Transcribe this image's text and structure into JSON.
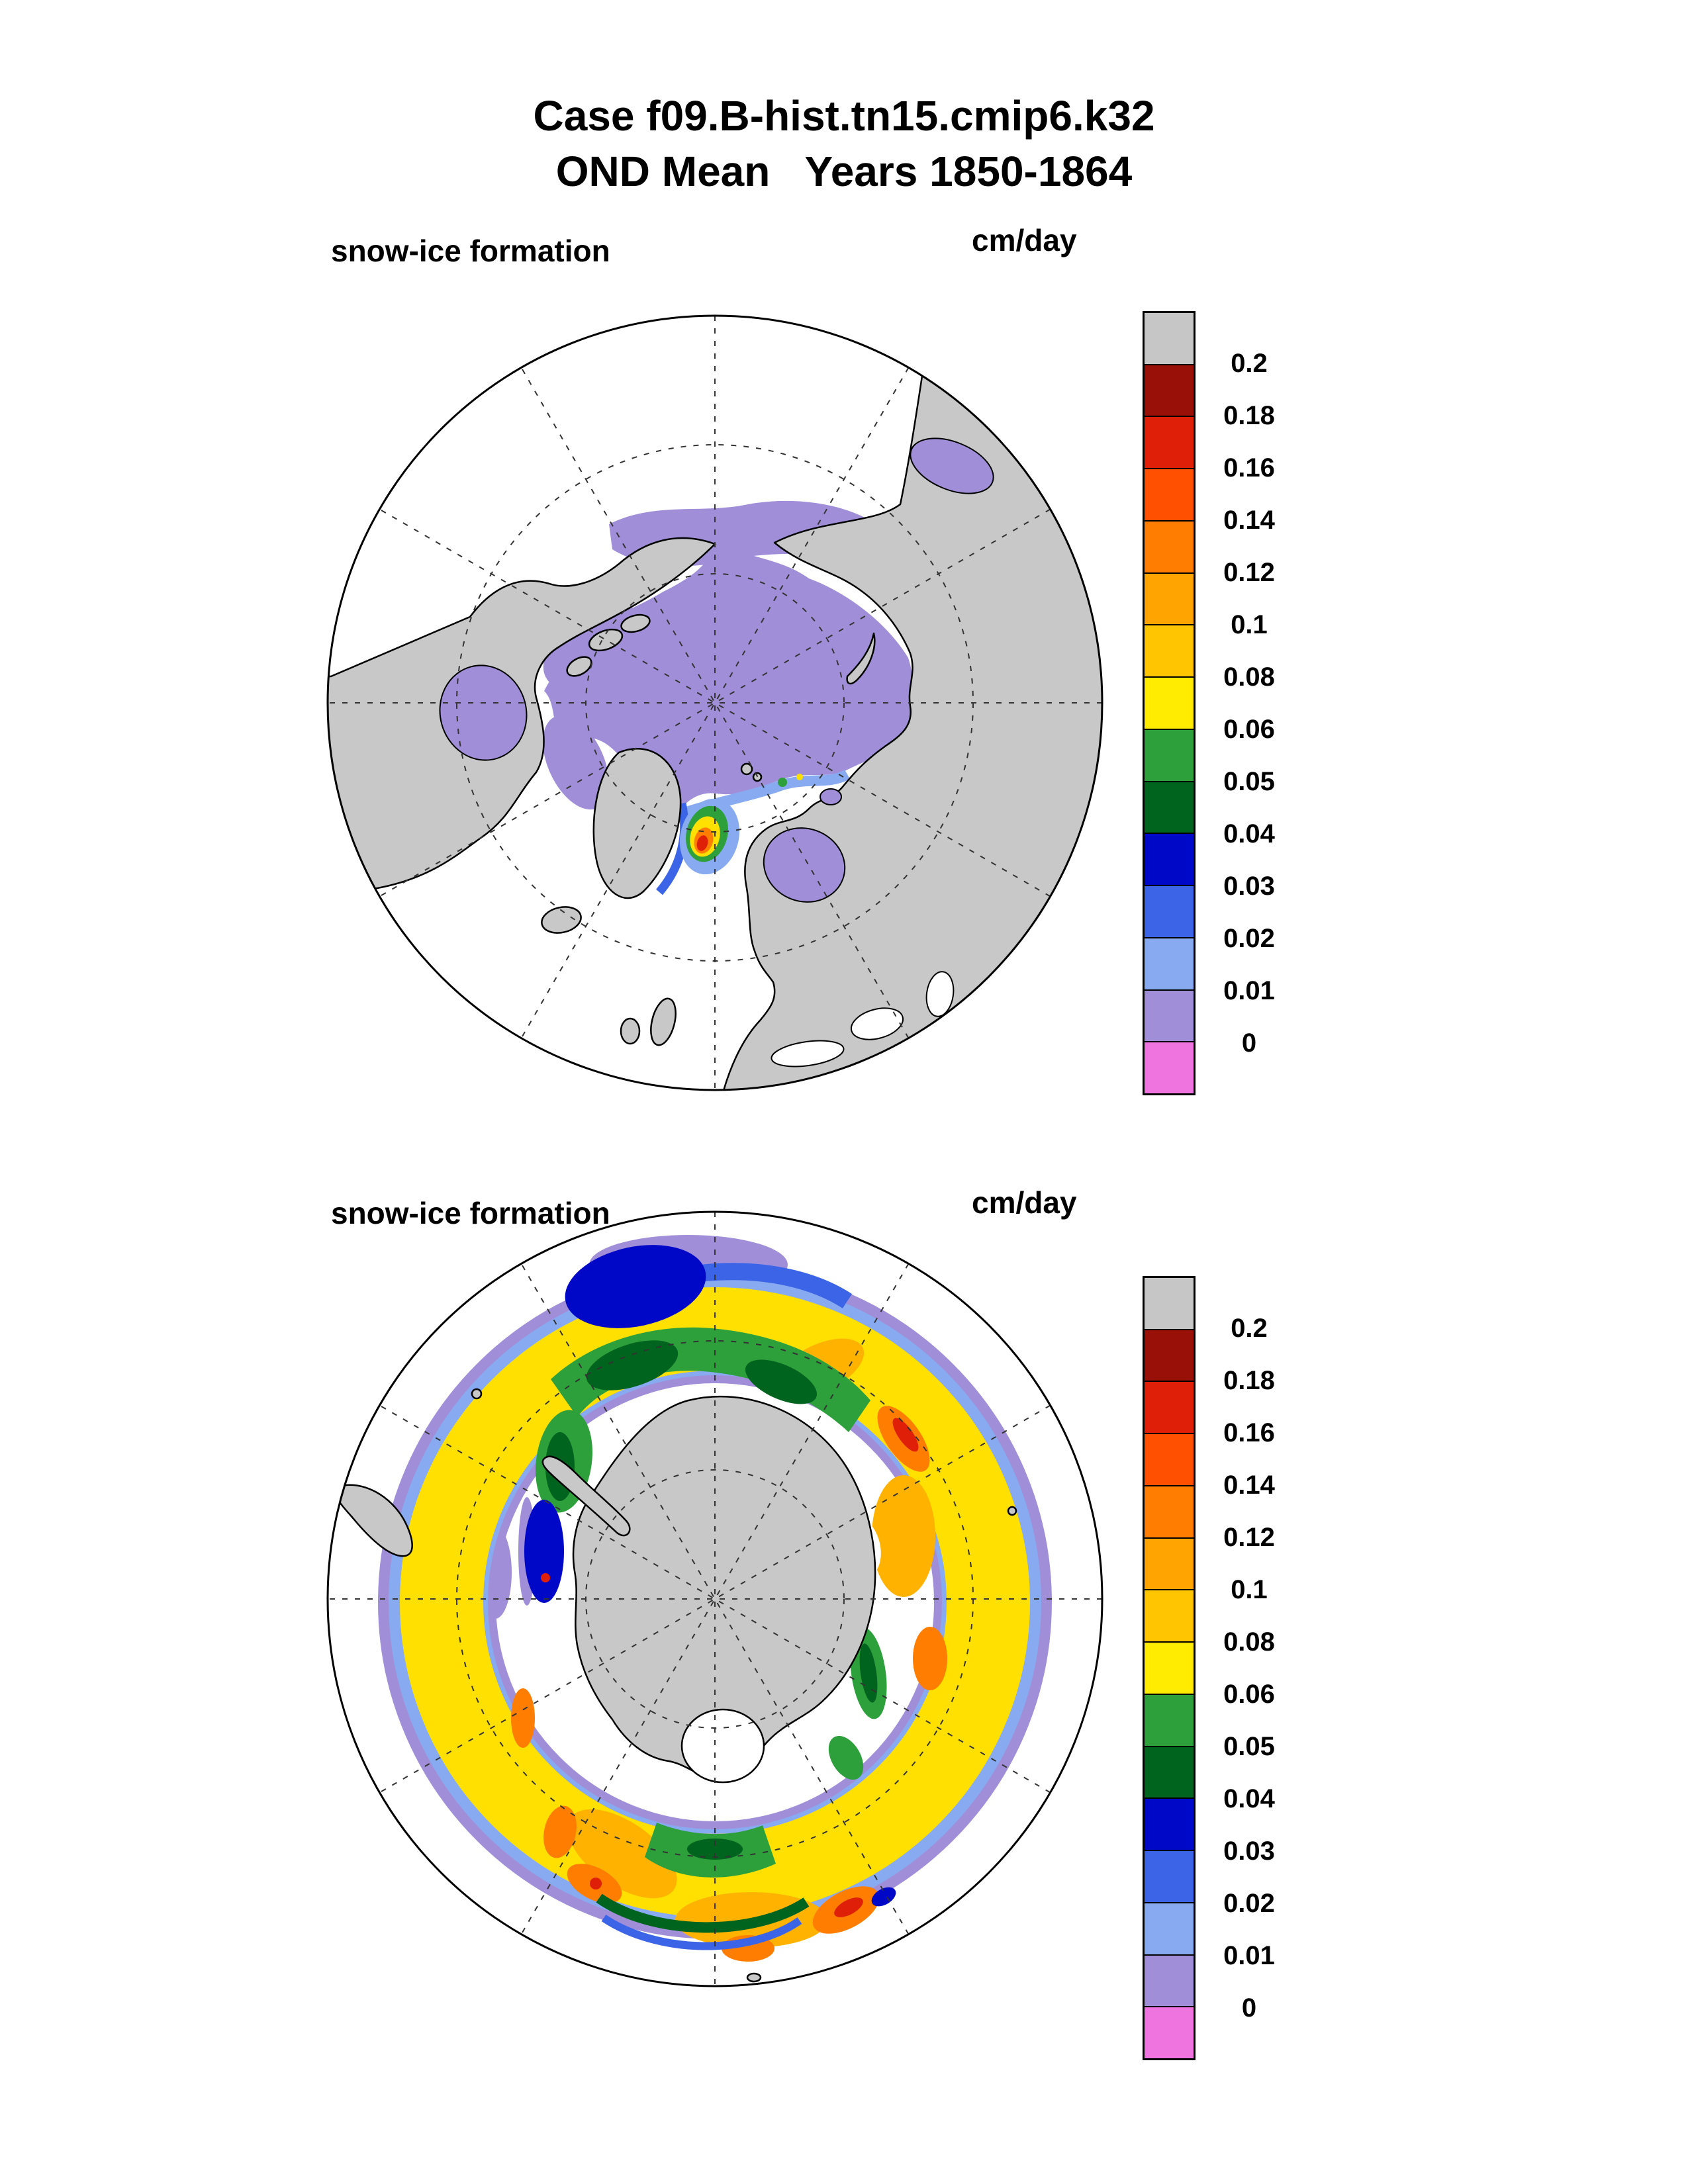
{
  "title": {
    "line1": "Case f09.B-hist.tn15.cmip6.k32",
    "line2": "OND Mean   Years 1850-1864"
  },
  "panels": [
    {
      "label": "snow-ice formation",
      "units": "cm/day",
      "hemisphere": "Arctic (north polar view)"
    },
    {
      "label": "snow-ice formation",
      "units": "cm/day",
      "hemisphere": "Antarctic (south polar view)"
    }
  ],
  "colorbar": {
    "tick_labels": [
      "0.2",
      "0.18",
      "0.16",
      "0.14",
      "0.12",
      "0.1",
      "0.08",
      "0.06",
      "0.05",
      "0.04",
      "0.03",
      "0.02",
      "0.01",
      "0"
    ],
    "colors_top_to_bottom": [
      "#c6c6c6",
      "#991008",
      "#e01f09",
      "#ff4f00",
      "#ff7d00",
      "#ffa400",
      "#ffc600",
      "#ffec00",
      "#2da03c",
      "#00641e",
      "#0008c8",
      "#3c64e6",
      "#88aaf0",
      "#a08fd8",
      "#f074e0"
    ]
  },
  "map_colors": {
    "land": "#c8c8c8",
    "ocean": "#ffffff",
    "ice_low_purple": "#a08fd8",
    "yellow_band": "#ffe000",
    "amber": "#ffb300",
    "orange": "#ff7d00",
    "red": "#e01f09",
    "green": "#2da03c",
    "dark_green": "#00641e",
    "dark_blue": "#0008c8",
    "royal_blue": "#3c64e6",
    "light_blue": "#88aaf0"
  },
  "chart_data": [
    {
      "type": "heatmap",
      "title": "snow-ice formation",
      "units": "cm/day",
      "projection": "polar stereographic, Northern Hemisphere",
      "legend_position": "right",
      "levels": [
        0,
        0.01,
        0.02,
        0.03,
        0.04,
        0.05,
        0.06,
        0.08,
        0.1,
        0.12,
        0.14,
        0.16,
        0.18,
        0.2
      ],
      "level_colors_low_to_high": [
        "#f074e0",
        "#a08fd8",
        "#88aaf0",
        "#3c64e6",
        "#0008c8",
        "#00641e",
        "#2da03c",
        "#ffec00",
        "#ffc600",
        "#ffa400",
        "#ff7d00",
        "#ff4f00",
        "#e01f09",
        "#991008",
        "#c6c6c6"
      ],
      "features": [
        "central Arctic Ocean: 0-0.01 cm/day (purple) covering the pole",
        "Hudson Bay: 0-0.01 cm/day (purple)",
        "Bering Sea strip: 0-0.01 cm/day (purple)",
        "Sea of Okhotsk patch: 0-0.01 cm/day (purple)",
        "Gulf of Bothnia / Baltic patch: 0-0.01 cm/day (purple)",
        "ice edge fringe in Barents and Fram Strait: 0.01-0.03 cm/day (light/royal blue)",
        "Greenland Sea (Odden) local maximum: up to ~0.14-0.16 cm/day (yellow-orange-red spot)"
      ]
    },
    {
      "type": "heatmap",
      "title": "snow-ice formation",
      "units": "cm/day",
      "projection": "polar stereographic, Southern Hemisphere",
      "legend_position": "right",
      "levels": [
        0,
        0.01,
        0.02,
        0.03,
        0.04,
        0.05,
        0.06,
        0.08,
        0.1,
        0.12,
        0.14,
        0.16,
        0.18,
        0.2
      ],
      "level_colors_low_to_high": [
        "#f074e0",
        "#a08fd8",
        "#88aaf0",
        "#3c64e6",
        "#0008c8",
        "#00641e",
        "#2da03c",
        "#ffec00",
        "#ffc600",
        "#ffa400",
        "#ff7d00",
        "#ff4f00",
        "#e01f09",
        "#991008",
        "#c6c6c6"
      ],
      "features": [
        "circumpolar ring around Antarctica mostly 0.06-0.12 cm/day (yellow/amber)",
        "orange-red local maxima ~0.12-0.16 cm/day near 60E sector and in bottom-right/bottom-left sectors",
        "green band 0.04-0.05 cm/day on poleward edge at top and along inner coast",
        "dark blue patch 0.03 cm/day on outer edge at top (north of Weddell sector)",
        "light blue 0.02 and purple 0-0.01 fringe along the outer ice edge",
        "gray Antarctic continent in center with white Ross Sea embayment"
      ]
    }
  ]
}
